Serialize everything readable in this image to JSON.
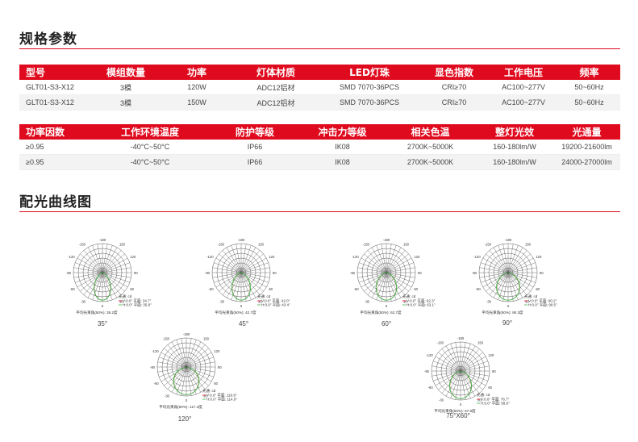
{
  "spec_title": "规格参数",
  "table1": {
    "headers": [
      "型号",
      "模组数量",
      "功率",
      "灯体材质",
      "LED灯珠",
      "显色指数",
      "工作电压",
      "频率"
    ],
    "rows": [
      [
        "GLT01-S3-X12",
        "3模",
        "120W",
        "ADC12铝材",
        "SMD 7070-36PCS",
        "CRI≥70",
        "AC100~277V",
        "50~60Hz"
      ],
      [
        "GLT01-S3-X12",
        "3模",
        "150W",
        "ADC12铝材",
        "SMD 7070-36PCS",
        "CRI≥70",
        "AC100~277V",
        "50~60Hz"
      ]
    ]
  },
  "table2": {
    "headers": [
      "功率因数",
      "工作环境温度",
      "防护等级",
      "冲击力等级",
      "相关色温",
      "整灯光效",
      "光通量"
    ],
    "rows": [
      [
        "≥0.95",
        "-40°C~50°C",
        "IP66",
        "IK08",
        "2700K~5000K",
        "160-180lm/W",
        "19200-21600lm"
      ],
      [
        "≥0.95",
        "-40°C~50°C",
        "IP66",
        "IK08",
        "2700K~5000K",
        "160-180lm/W",
        "24000-27000lm"
      ]
    ]
  },
  "dist_title": "配光曲线图",
  "diagram_common": {
    "angle_labels": [
      "-180",
      "-150",
      "150",
      "-120",
      "120",
      "-90",
      "90",
      "-60",
      "60",
      "-30",
      "30",
      "0"
    ],
    "unit_label": "光通: cd",
    "colors": {
      "c0": "#8a6d1e",
      "c90": "#3bb34a",
      "grid": "#555555",
      "accent": "#e00a1e"
    }
  },
  "diagrams": [
    {
      "caption": "35°",
      "legend_v": "V:0.0° 平面: 34.7°",
      "legend_h": "H:0.0° 平面: 35.8°",
      "avg": "平均光束角(50%): 35.2度"
    },
    {
      "caption": "45°",
      "legend_v": "V:0.0° 平面: 42.0°",
      "legend_h": "H:0.0° 平面: 43.4°",
      "avg": "平均光束角(50%): 42.7度"
    },
    {
      "caption": "60°",
      "legend_v": "V:0.0° 平面: 62.3°",
      "legend_h": "H:0.0° 平面: 63.1°",
      "avg": "平均光束角(50%): 62.7度"
    },
    {
      "caption": "90°",
      "legend_v": "V:0.0° 平面: 90.2°",
      "legend_h": "H:0.0° 平面: 90.5°",
      "avg": "平均光束角(50%): 90.3度"
    },
    {
      "caption": "120°",
      "legend_v": "V:0.0° 平面: 119.9°",
      "legend_h": "H:0.0° 平面: 114.9°",
      "avg": "平均光束角(50%): 117.4度"
    },
    {
      "caption": "75°X60°",
      "legend_v": "V:0.0°  平面:  76.7°",
      "legend_h": "H:0.0°  平面:  58.9°",
      "avg": "平均光束角(50%): 67.8度"
    }
  ]
}
